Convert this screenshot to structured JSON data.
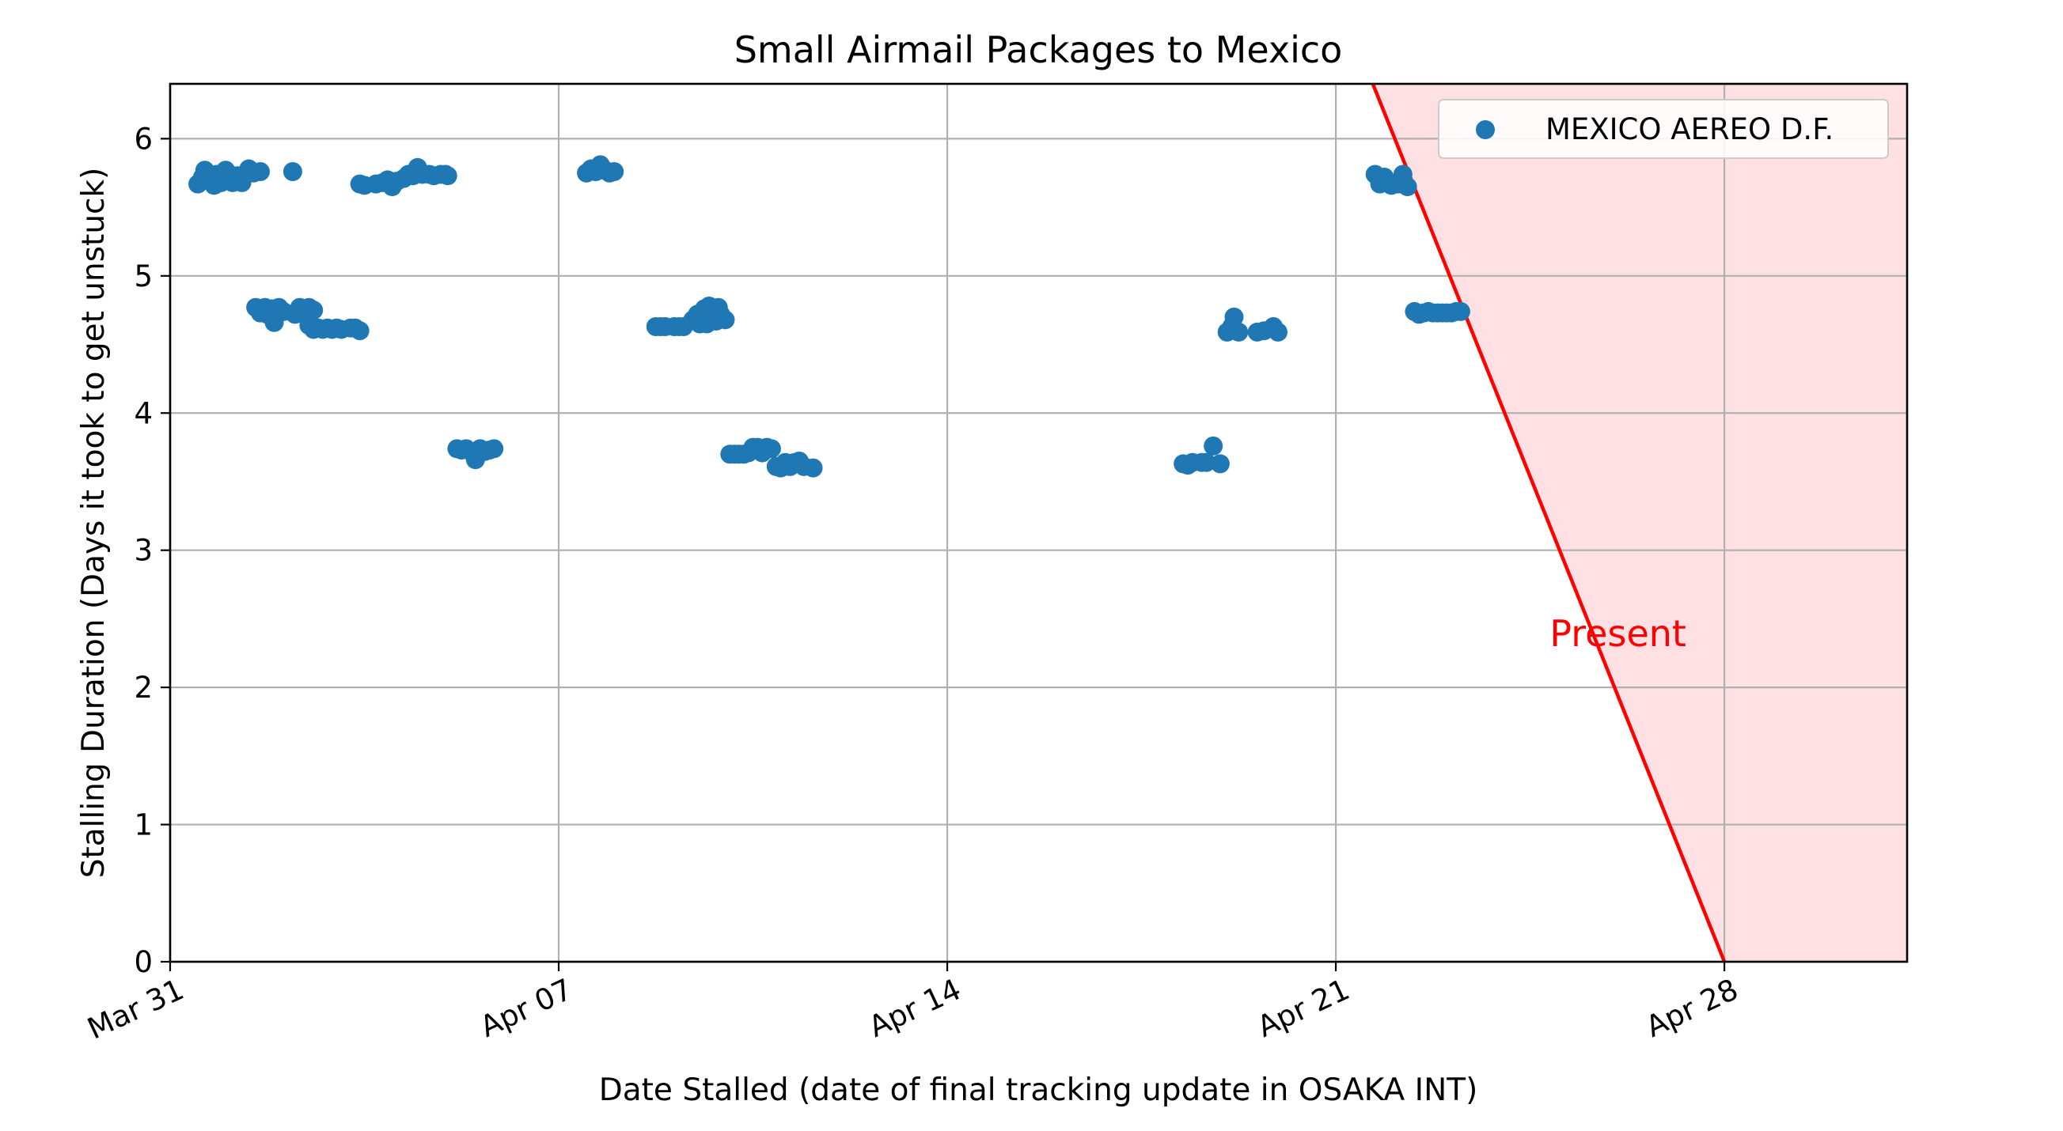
{
  "chart_data": {
    "type": "scatter",
    "title": "Small Airmail Packages to Mexico",
    "xlabel": "Date Stalled (date of final tracking update in OSAKA INT)",
    "ylabel": "Stalling Duration (Days it took to get unstuck)",
    "xlim": [
      "2025-03-31",
      "2025-05-01 07:00"
    ],
    "ylim": [
      0,
      6.4
    ],
    "x_ticks": [
      {
        "date": "2025-03-31",
        "label": "Mar 31"
      },
      {
        "date": "2025-04-07",
        "label": "Apr 07"
      },
      {
        "date": "2025-04-14",
        "label": "Apr 14"
      },
      {
        "date": "2025-04-21",
        "label": "Apr 21"
      },
      {
        "date": "2025-04-28",
        "label": "Apr 28"
      }
    ],
    "y_ticks": [
      0,
      1,
      2,
      3,
      4,
      5,
      6
    ],
    "grid": true,
    "legend": {
      "position": "top-right"
    },
    "series": [
      {
        "name": "MEXICO AEREO D.F.",
        "color": "#1f77b4",
        "points": [
          {
            "x": "2025-03-31 12:00",
            "y": 5.67
          },
          {
            "x": "2025-03-31 14:00",
            "y": 5.72
          },
          {
            "x": "2025-03-31 15:00",
            "y": 5.77
          },
          {
            "x": "2025-03-31 17:00",
            "y": 5.7
          },
          {
            "x": "2025-03-31 19:00",
            "y": 5.66
          },
          {
            "x": "2025-03-31 20:00",
            "y": 5.74
          },
          {
            "x": "2025-03-31 22:00",
            "y": 5.68
          },
          {
            "x": "2025-04-01 00:00",
            "y": 5.77
          },
          {
            "x": "2025-04-01 01:00",
            "y": 5.72
          },
          {
            "x": "2025-04-01 03:00",
            "y": 5.68
          },
          {
            "x": "2025-04-01 05:00",
            "y": 5.73
          },
          {
            "x": "2025-04-01 07:00",
            "y": 5.68
          },
          {
            "x": "2025-04-01 09:00",
            "y": 5.75
          },
          {
            "x": "2025-04-01 10:00",
            "y": 5.78
          },
          {
            "x": "2025-04-01 12:00",
            "y": 5.75
          },
          {
            "x": "2025-04-01 15:00",
            "y": 5.76
          },
          {
            "x": "2025-04-02 05:00",
            "y": 5.76
          },
          {
            "x": "2025-04-01 13:00",
            "y": 4.77
          },
          {
            "x": "2025-04-01 15:00",
            "y": 4.73
          },
          {
            "x": "2025-04-01 17:00",
            "y": 4.77
          },
          {
            "x": "2025-04-01 18:00",
            "y": 4.72
          },
          {
            "x": "2025-04-01 20:00",
            "y": 4.76
          },
          {
            "x": "2025-04-01 21:00",
            "y": 4.66
          },
          {
            "x": "2025-04-01 23:00",
            "y": 4.77
          },
          {
            "x": "2025-04-02 01:00",
            "y": 4.74
          },
          {
            "x": "2025-04-02 06:00",
            "y": 4.72
          },
          {
            "x": "2025-04-02 08:00",
            "y": 4.77
          },
          {
            "x": "2025-04-02 10:00",
            "y": 4.72
          },
          {
            "x": "2025-04-02 12:00",
            "y": 4.77
          },
          {
            "x": "2025-04-02 14:00",
            "y": 4.75
          },
          {
            "x": "2025-04-02 12:00",
            "y": 4.64
          },
          {
            "x": "2025-04-02 14:00",
            "y": 4.61
          },
          {
            "x": "2025-04-02 16:00",
            "y": 4.62
          },
          {
            "x": "2025-04-02 18:00",
            "y": 4.61
          },
          {
            "x": "2025-04-02 20:00",
            "y": 4.62
          },
          {
            "x": "2025-04-02 22:00",
            "y": 4.61
          },
          {
            "x": "2025-04-03 00:00",
            "y": 4.62
          },
          {
            "x": "2025-04-03 02:00",
            "y": 4.61
          },
          {
            "x": "2025-04-03 06:00",
            "y": 4.62
          },
          {
            "x": "2025-04-03 08:00",
            "y": 4.62
          },
          {
            "x": "2025-04-03 10:00",
            "y": 4.6
          },
          {
            "x": "2025-04-03 10:00",
            "y": 5.67
          },
          {
            "x": "2025-04-03 12:00",
            "y": 5.66
          },
          {
            "x": "2025-04-03 17:00",
            "y": 5.67
          },
          {
            "x": "2025-04-03 20:00",
            "y": 5.68
          },
          {
            "x": "2025-04-03 22:00",
            "y": 5.7
          },
          {
            "x": "2025-04-04 00:00",
            "y": 5.65
          },
          {
            "x": "2025-04-04 02:00",
            "y": 5.69
          },
          {
            "x": "2025-04-04 05:00",
            "y": 5.71
          },
          {
            "x": "2025-04-04 07:00",
            "y": 5.74
          },
          {
            "x": "2025-04-04 09:00",
            "y": 5.73
          },
          {
            "x": "2025-04-04 11:00",
            "y": 5.79
          },
          {
            "x": "2025-04-04 13:00",
            "y": 5.74
          },
          {
            "x": "2025-04-04 16:00",
            "y": 5.74
          },
          {
            "x": "2025-04-04 18:00",
            "y": 5.73
          },
          {
            "x": "2025-04-04 21:00",
            "y": 5.74
          },
          {
            "x": "2025-04-04 23:00",
            "y": 5.74
          },
          {
            "x": "2025-04-05 00:00",
            "y": 5.73
          },
          {
            "x": "2025-04-05 04:00",
            "y": 3.74
          },
          {
            "x": "2025-04-05 06:00",
            "y": 3.73
          },
          {
            "x": "2025-04-05 08:00",
            "y": 3.74
          },
          {
            "x": "2025-04-05 10:00",
            "y": 3.72
          },
          {
            "x": "2025-04-05 12:00",
            "y": 3.66
          },
          {
            "x": "2025-04-05 14:00",
            "y": 3.74
          },
          {
            "x": "2025-04-05 16:00",
            "y": 3.72
          },
          {
            "x": "2025-04-05 18:00",
            "y": 3.73
          },
          {
            "x": "2025-04-05 20:00",
            "y": 3.74
          },
          {
            "x": "2025-04-07 12:00",
            "y": 5.75
          },
          {
            "x": "2025-04-07 14:00",
            "y": 5.78
          },
          {
            "x": "2025-04-07 16:00",
            "y": 5.76
          },
          {
            "x": "2025-04-07 18:00",
            "y": 5.81
          },
          {
            "x": "2025-04-07 20:00",
            "y": 5.77
          },
          {
            "x": "2025-04-07 22:00",
            "y": 5.75
          },
          {
            "x": "2025-04-08 00:00",
            "y": 5.76
          },
          {
            "x": "2025-04-08 18:00",
            "y": 4.63
          },
          {
            "x": "2025-04-08 20:00",
            "y": 4.63
          },
          {
            "x": "2025-04-08 22:00",
            "y": 4.63
          },
          {
            "x": "2025-04-09 02:00",
            "y": 4.63
          },
          {
            "x": "2025-04-09 04:00",
            "y": 4.63
          },
          {
            "x": "2025-04-09 06:00",
            "y": 4.63
          },
          {
            "x": "2025-04-09 10:00",
            "y": 4.68
          },
          {
            "x": "2025-04-09 12:00",
            "y": 4.72
          },
          {
            "x": "2025-04-09 13:00",
            "y": 4.65
          },
          {
            "x": "2025-04-09 14:00",
            "y": 4.7
          },
          {
            "x": "2025-04-09 15:00",
            "y": 4.76
          },
          {
            "x": "2025-04-09 16:00",
            "y": 4.65
          },
          {
            "x": "2025-04-09 17:00",
            "y": 4.78
          },
          {
            "x": "2025-04-09 18:00",
            "y": 4.72
          },
          {
            "x": "2025-04-09 20:00",
            "y": 4.67
          },
          {
            "x": "2025-04-09 21:00",
            "y": 4.77
          },
          {
            "x": "2025-04-09 22:00",
            "y": 4.72
          },
          {
            "x": "2025-04-10 00:00",
            "y": 4.68
          },
          {
            "x": "2025-04-10 02:00",
            "y": 3.7
          },
          {
            "x": "2025-04-10 04:00",
            "y": 3.7
          },
          {
            "x": "2025-04-10 06:00",
            "y": 3.7
          },
          {
            "x": "2025-04-10 08:00",
            "y": 3.7
          },
          {
            "x": "2025-04-10 10:00",
            "y": 3.71
          },
          {
            "x": "2025-04-10 12:00",
            "y": 3.75
          },
          {
            "x": "2025-04-10 14:00",
            "y": 3.75
          },
          {
            "x": "2025-04-10 16:00",
            "y": 3.71
          },
          {
            "x": "2025-04-10 18:00",
            "y": 3.75
          },
          {
            "x": "2025-04-10 20:00",
            "y": 3.74
          },
          {
            "x": "2025-04-10 22:00",
            "y": 3.61
          },
          {
            "x": "2025-04-11 00:00",
            "y": 3.6
          },
          {
            "x": "2025-04-11 02:00",
            "y": 3.64
          },
          {
            "x": "2025-04-11 04:00",
            "y": 3.61
          },
          {
            "x": "2025-04-11 06:00",
            "y": 3.64
          },
          {
            "x": "2025-04-11 08:00",
            "y": 3.65
          },
          {
            "x": "2025-04-11 10:00",
            "y": 3.61
          },
          {
            "x": "2025-04-11 14:00",
            "y": 3.6
          },
          {
            "x": "2025-04-18 06:00",
            "y": 3.63
          },
          {
            "x": "2025-04-18 08:00",
            "y": 3.62
          },
          {
            "x": "2025-04-18 10:00",
            "y": 3.64
          },
          {
            "x": "2025-04-18 14:00",
            "y": 3.64
          },
          {
            "x": "2025-04-18 16:00",
            "y": 3.64
          },
          {
            "x": "2025-04-18 19:00",
            "y": 3.76
          },
          {
            "x": "2025-04-18 22:00",
            "y": 3.63
          },
          {
            "x": "2025-04-19 01:00",
            "y": 4.59
          },
          {
            "x": "2025-04-19 03:00",
            "y": 4.63
          },
          {
            "x": "2025-04-19 04:00",
            "y": 4.7
          },
          {
            "x": "2025-04-19 06:00",
            "y": 4.59
          },
          {
            "x": "2025-04-19 14:00",
            "y": 4.59
          },
          {
            "x": "2025-04-19 17:00",
            "y": 4.6
          },
          {
            "x": "2025-04-19 21:00",
            "y": 4.63
          },
          {
            "x": "2025-04-19 23:00",
            "y": 4.59
          },
          {
            "x": "2025-04-21 17:00",
            "y": 5.74
          },
          {
            "x": "2025-04-21 19:00",
            "y": 5.67
          },
          {
            "x": "2025-04-21 21:00",
            "y": 5.72
          },
          {
            "x": "2025-04-22 00:00",
            "y": 5.66
          },
          {
            "x": "2025-04-22 03:00",
            "y": 5.67
          },
          {
            "x": "2025-04-22 05:00",
            "y": 5.74
          },
          {
            "x": "2025-04-22 07:00",
            "y": 5.65
          },
          {
            "x": "2025-04-22 10:00",
            "y": 4.74
          },
          {
            "x": "2025-04-22 12:00",
            "y": 4.72
          },
          {
            "x": "2025-04-22 14:00",
            "y": 4.73
          },
          {
            "x": "2025-04-22 16:00",
            "y": 4.74
          },
          {
            "x": "2025-04-22 18:00",
            "y": 4.73
          },
          {
            "x": "2025-04-22 20:00",
            "y": 4.73
          },
          {
            "x": "2025-04-22 22:00",
            "y": 4.73
          },
          {
            "x": "2025-04-23 00:00",
            "y": 4.73
          },
          {
            "x": "2025-04-23 02:00",
            "y": 4.73
          },
          {
            "x": "2025-04-23 04:00",
            "y": 4.74
          },
          {
            "x": "2025-04-23 06:00",
            "y": 4.74
          }
        ]
      }
    ],
    "annotations": [
      {
        "type": "line",
        "color": "#ff0000",
        "from": {
          "x": "2025-04-21 16:00",
          "y": 6.4
        },
        "to": {
          "x": "2025-04-28",
          "y": 0
        }
      },
      {
        "type": "region",
        "fill": "#ffe0e3",
        "vertices": [
          {
            "x": "2025-04-21 16:00",
            "y": 6.4
          },
          {
            "x": "2025-05-01 07:00",
            "y": 6.4
          },
          {
            "x": "2025-05-01 07:00",
            "y": 0
          },
          {
            "x": "2025-04-28",
            "y": 0
          }
        ]
      },
      {
        "type": "text",
        "text": "Present",
        "color": "#ff0000",
        "at": {
          "x": "2025-04-26 02:00",
          "y": 2.3
        }
      }
    ]
  }
}
